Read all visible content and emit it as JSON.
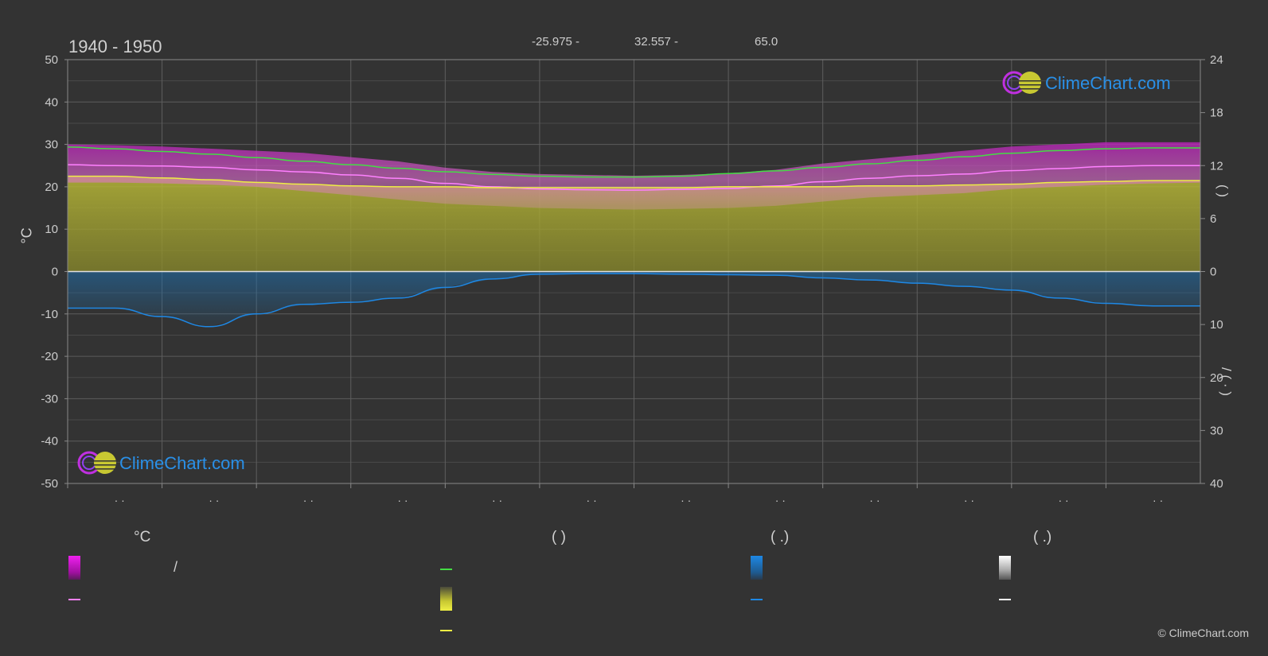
{
  "header": {
    "period": "1940 - 1950",
    "latitude": "-25.975 -",
    "longitude": "32.557 -",
    "elevation": "65.0"
  },
  "axes": {
    "left_unit": "°C",
    "right_upper_label": "(          )",
    "right_lower_label": "/      (  ·  )"
  },
  "watermarks": {
    "top_brand": "ClimeChart.com",
    "bottom_brand": "ClimeChart.com"
  },
  "legend": {
    "temperature_heading": "°C",
    "daylight_heading": "(          )",
    "rain_heading": "(    .)",
    "snow_heading": "(    .)",
    "temp_range_label": "/",
    "icon_names": [
      "temp-range-swatch",
      "temp-mean-line",
      "daylight-line",
      "sunshine-swatch",
      "sunshine-line",
      "rain-swatch",
      "rain-line",
      "snow-swatch",
      "snow-line"
    ]
  },
  "colors": {
    "background": "#333333",
    "temp_range": "#e020e0",
    "temp_mean": "#ff80ff",
    "daylight": "#44dd44",
    "sunshine_fill": "#c8c832",
    "sunshine_line": "#eeee44",
    "rain": "#1e88e5",
    "snow": "#ffffff",
    "brand_blue": "#1e90ff"
  },
  "copyright": "© ClimeChart.com",
  "chart_data": {
    "type": "area",
    "xlabel": "",
    "ylabel": "°C",
    "ylim": [
      -50,
      50
    ],
    "y2_upper_lim": [
      0,
      24
    ],
    "y2_lower_lim": [
      0,
      40
    ],
    "left_ticks": [
      "50",
      "40",
      "30",
      "20",
      "10",
      "0",
      "-10",
      "-20",
      "-30",
      "-40",
      "-50"
    ],
    "right_upper_ticks": [
      "24",
      "18",
      "12",
      "6",
      "0"
    ],
    "right_lower_ticks": [
      "10",
      "20",
      "30",
      "40"
    ],
    "month_ticks": [
      "· ·",
      "· ·",
      "· ·",
      "· ·",
      "· ·",
      "· ·",
      "· ·",
      "· ·",
      "· ·",
      "· ·",
      "· ·",
      "· ·"
    ],
    "grid": true,
    "x": [
      0,
      0.5,
      1,
      1.5,
      2,
      2.5,
      3,
      3.5,
      4,
      4.5,
      5,
      5.5,
      6,
      6.5,
      7,
      7.5,
      8,
      8.5,
      9,
      9.5,
      10,
      10.5,
      11,
      11.5,
      12
    ],
    "series": [
      {
        "key": "daylight",
        "axis": "right_upper",
        "values": [
          14.1,
          13.9,
          13.6,
          13.3,
          12.9,
          12.5,
          12.1,
          11.7,
          11.3,
          11.0,
          10.8,
          10.7,
          10.7,
          10.8,
          11.1,
          11.4,
          11.8,
          12.2,
          12.6,
          13.0,
          13.4,
          13.7,
          13.9,
          14.0,
          14.0
        ]
      },
      {
        "key": "temp_mean",
        "axis": "left",
        "values": [
          25.2,
          25.0,
          24.9,
          24.6,
          24.0,
          23.5,
          22.8,
          22.0,
          20.8,
          20.0,
          19.5,
          19.3,
          19.2,
          19.4,
          19.6,
          20.2,
          21.2,
          22.0,
          22.6,
          23.0,
          23.8,
          24.3,
          24.8,
          25.0,
          25.0
        ]
      },
      {
        "key": "sunshine",
        "axis": "right_upper",
        "values": [
          10.8,
          10.8,
          10.6,
          10.4,
          10.1,
          9.9,
          9.7,
          9.6,
          9.6,
          9.5,
          9.5,
          9.5,
          9.5,
          9.5,
          9.6,
          9.6,
          9.6,
          9.7,
          9.7,
          9.8,
          9.9,
          10.1,
          10.2,
          10.3,
          10.3
        ]
      },
      {
        "key": "rain",
        "axis": "right_lower",
        "values": [
          6.9,
          6.9,
          8.5,
          10.4,
          8.0,
          6.2,
          5.8,
          5.0,
          3.0,
          1.4,
          0.5,
          0.4,
          0.4,
          0.5,
          0.6,
          0.7,
          1.2,
          1.6,
          2.2,
          2.8,
          3.5,
          5.0,
          6.0,
          6.5,
          6.5
        ]
      }
    ],
    "temp_band_upper": [
      30,
      29.8,
      29.5,
      29,
      28.5,
      28,
      27,
      26,
      24.5,
      23.5,
      23,
      22.8,
      22.6,
      22.8,
      23.2,
      24,
      25.5,
      26.5,
      27.5,
      28.5,
      29.5,
      30,
      30.5,
      30.5,
      30.5
    ],
    "temp_band_lower": [
      21,
      21,
      20.8,
      20.5,
      20,
      19,
      18,
      17,
      16,
      15.5,
      15,
      14.8,
      14.6,
      14.8,
      15,
      15.5,
      16.5,
      17.5,
      18,
      18.5,
      19.5,
      20,
      20.5,
      20.8,
      21
    ]
  }
}
